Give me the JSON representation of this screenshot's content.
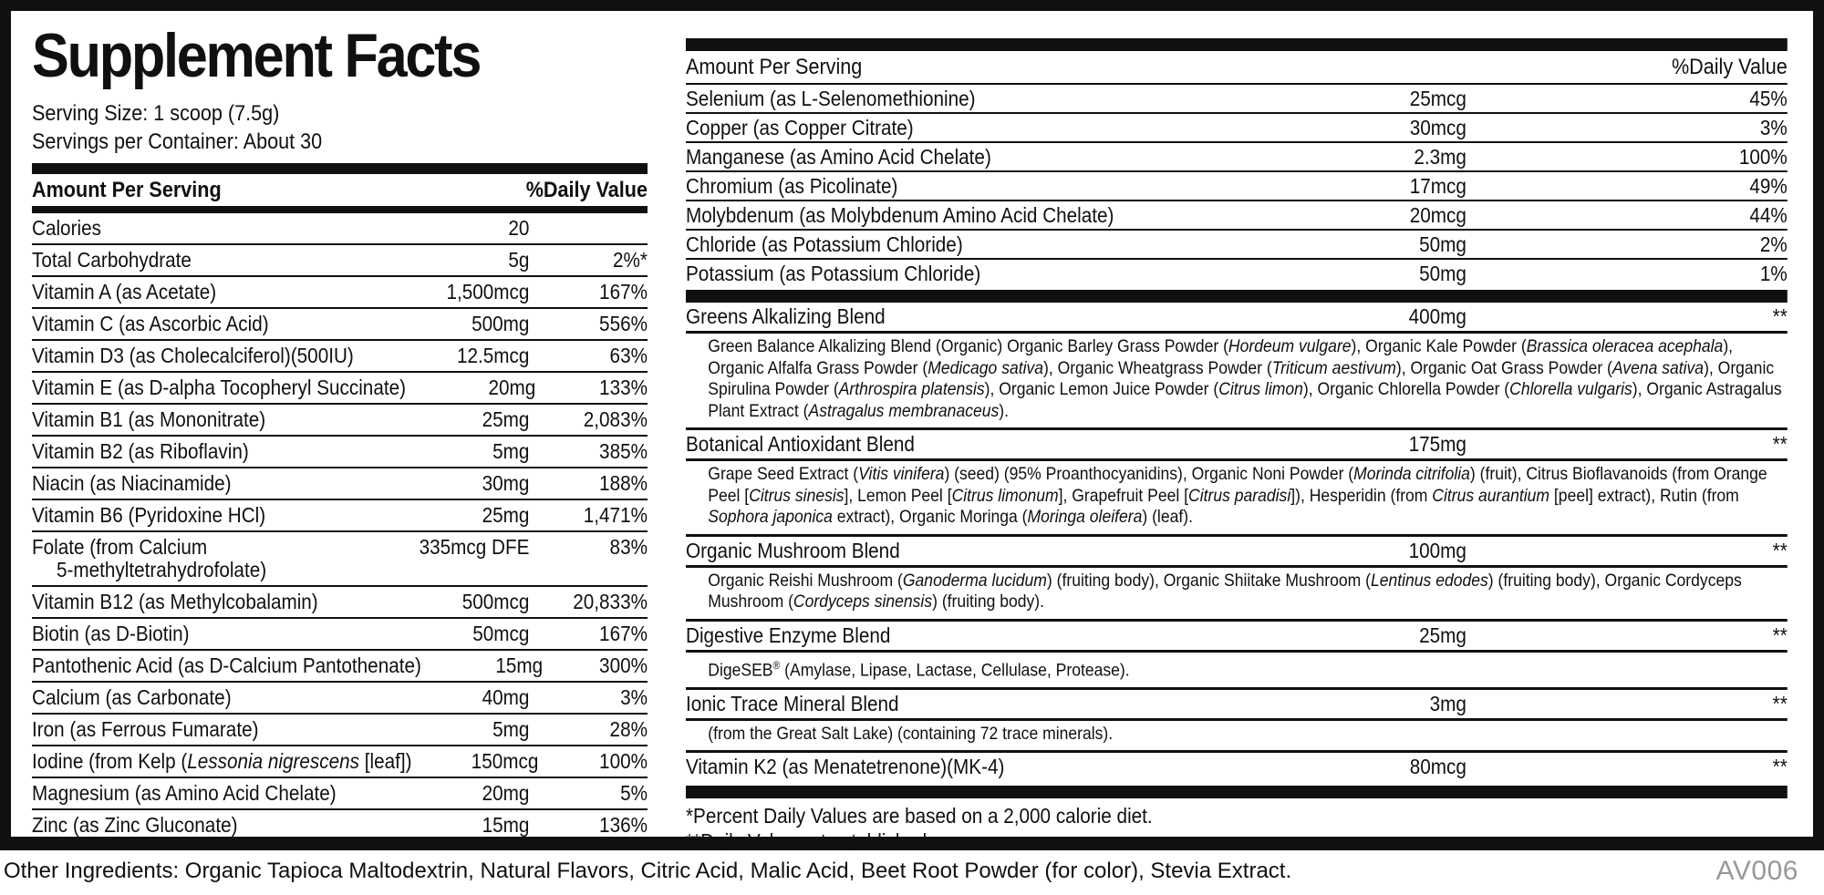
{
  "title": "Supplement Facts",
  "serving": {
    "size": "Serving Size: 1 scoop (7.5g)",
    "per_container": "Servings per Container: About 30"
  },
  "headers": {
    "amount": "Amount Per Serving",
    "dv": "%Daily Value"
  },
  "left_table": {
    "rows": [
      {
        "name": [
          "Calories"
        ],
        "amount": "20",
        "dv": ""
      },
      {
        "name": [
          "Total Carbohydrate"
        ],
        "amount": "5g",
        "dv": "2%*"
      },
      {
        "name": [
          "Vitamin A (as Acetate)"
        ],
        "amount": "1,500mcg",
        "dv": "167%"
      },
      {
        "name": [
          "Vitamin C (as Ascorbic Acid)"
        ],
        "amount": "500mg",
        "dv": "556%"
      },
      {
        "name": [
          "Vitamin D3 (as Cholecalciferol)(500IU)"
        ],
        "amount": "12.5mcg",
        "dv": "63%"
      },
      {
        "name": [
          "Vitamin E (as D-alpha Tocopheryl Succinate)"
        ],
        "amount": "20mg",
        "dv": "133%"
      },
      {
        "name": [
          "Vitamin B1 (as Mononitrate)"
        ],
        "amount": "25mg",
        "dv": "2,083%"
      },
      {
        "name": [
          "Vitamin B2 (as Riboflavin)"
        ],
        "amount": "5mg",
        "dv": "385%"
      },
      {
        "name": [
          "Niacin (as Niacinamide)"
        ],
        "amount": "30mg",
        "dv": "188%"
      },
      {
        "name": [
          "Vitamin B6 (Pyridoxine HCl)"
        ],
        "amount": "25mg",
        "dv": "1,471%"
      },
      {
        "name": [
          "Folate (from Calcium"
        ],
        "name2": "5-methyltetrahydrofolate)",
        "amount": "335mcg DFE",
        "dv": "83%"
      },
      {
        "name": [
          "Vitamin B12 (as Methylcobalamin)"
        ],
        "amount": "500mcg",
        "dv": "20,833%"
      },
      {
        "name": [
          "Biotin (as D-Biotin)"
        ],
        "amount": "50mcg",
        "dv": "167%"
      },
      {
        "name": [
          "Pantothenic Acid (as D-Calcium Pantothenate)"
        ],
        "amount": "15mg",
        "dv": "300%"
      },
      {
        "name": [
          "Calcium (as Carbonate)"
        ],
        "amount": "40mg",
        "dv": "3%"
      },
      {
        "name": [
          "Iron (as Ferrous Fumarate)"
        ],
        "amount": "5mg",
        "dv": "28%"
      },
      {
        "name": [
          "Iodine (from Kelp (",
          {
            "i": "Lessonia nigrescens"
          },
          " [leaf])"
        ],
        "amount": "150mcg",
        "dv": "100%"
      },
      {
        "name": [
          "Magnesium (as Amino Acid Chelate)"
        ],
        "amount": "20mg",
        "dv": "5%"
      },
      {
        "name": [
          "Zinc (as Zinc Gluconate)"
        ],
        "amount": "15mg",
        "dv": "136%"
      }
    ]
  },
  "right_table": {
    "rows": [
      {
        "name": [
          "Selenium (as L-Selenomethionine)"
        ],
        "amount": "25mcg",
        "dv": "45%"
      },
      {
        "name": [
          "Copper (as Copper Citrate)"
        ],
        "amount": "30mcg",
        "dv": "3%"
      },
      {
        "name": [
          "Manganese (as Amino Acid Chelate)"
        ],
        "amount": "2.3mg",
        "dv": "100%"
      },
      {
        "name": [
          "Chromium (as Picolinate)"
        ],
        "amount": "17mcg",
        "dv": "49%"
      },
      {
        "name": [
          "Molybdenum (as Molybdenum Amino Acid Chelate)"
        ],
        "amount": "20mcg",
        "dv": "44%"
      },
      {
        "name": [
          "Chloride (as Potassium Chloride)"
        ],
        "amount": "50mg",
        "dv": "2%"
      },
      {
        "name": [
          "Potassium (as Potassium Chloride)"
        ],
        "amount": "50mg",
        "dv": "1%"
      }
    ],
    "blends": [
      {
        "name": [
          "Greens Alkalizing Blend"
        ],
        "amount": "400mg",
        "dv": "**",
        "desc": [
          "Green Balance Alkalizing Blend (Organic) Organic Barley Grass Powder (",
          {
            "i": "Hordeum vulgare"
          },
          "), Organic Kale Powder (",
          {
            "i": "Brassica oleracea acephala"
          },
          "), Organic Alfalfa Grass Powder (",
          {
            "i": "Medicago sativa"
          },
          "), Organic Wheatgrass Powder (",
          {
            "i": "Triticum aestivum"
          },
          "), Organic Oat Grass Powder (",
          {
            "i": "Avena sativa"
          },
          "), Organic Spirulina Powder (",
          {
            "i": "Arthrospira platensis"
          },
          "), Organic Lemon Juice Powder (",
          {
            "i": "Citrus limon"
          },
          "), Organic Chlorella Powder (",
          {
            "i": "Chlorella vulgaris"
          },
          "), Organic Astragalus Plant Extract (",
          {
            "i": "Astragalus membranaceus"
          },
          ")."
        ]
      },
      {
        "name": [
          "Botanical Antioxidant Blend"
        ],
        "amount": "175mg",
        "dv": "**",
        "desc": [
          "Grape Seed Extract (",
          {
            "i": "Vitis vinifera"
          },
          ") (seed) (95% Proanthocyanidins), Organic Noni Powder (",
          {
            "i": "Morinda citrifolia"
          },
          ") (fruit), Citrus Bioflavanoids (from Orange Peel [",
          {
            "i": "Citrus sinesis"
          },
          "], Lemon Peel [",
          {
            "i": "Citrus limonum"
          },
          "], Grapefruit Peel [",
          {
            "i": "Citrus paradisi"
          },
          "]), Hesperidin (from ",
          {
            "i": "Citrus aurantium"
          },
          " [peel] extract), Rutin (from ",
          {
            "i": "Sophora japonica"
          },
          " extract), Organic Moringa (",
          {
            "i": "Moringa oleifera"
          },
          ") (leaf)."
        ]
      },
      {
        "name": [
          "Organic Mushroom Blend"
        ],
        "amount": "100mg",
        "dv": "**",
        "desc": [
          "Organic Reishi Mushroom (",
          {
            "i": "Ganoderma lucidum"
          },
          ") (fruiting body), Organic Shiitake Mushroom (",
          {
            "i": "Lentinus edodes"
          },
          ") (fruiting body), Organic Cordyceps Mushroom (",
          {
            "i": "Cordyceps sinensis"
          },
          ") (fruiting body)."
        ]
      },
      {
        "name": [
          "Digestive Enzyme Blend"
        ],
        "amount": "25mg",
        "dv": "**",
        "desc": [
          "DigeSEB",
          {
            "sup": "®"
          },
          " (Amylase, Lipase, Lactase, Cellulase, Protease)."
        ]
      },
      {
        "name": [
          "Ionic Trace Mineral Blend"
        ],
        "amount": "3mg",
        "dv": "**",
        "desc": [
          "(from the Great Salt Lake) (containing 72 trace minerals)."
        ]
      },
      {
        "name": [
          "Vitamin K2 (as Menatetrenone)(MK-4)"
        ],
        "amount": "80mcg",
        "dv": "**"
      }
    ],
    "footnotes": [
      "*Percent Daily Values are based on a 2,000 calorie diet.",
      "**Daily Value not established."
    ]
  },
  "footer": {
    "other_ingredients": "Other Ingredients: Organic Tapioca Maltodextrin, Natural Flavors, Citric Acid, Malic Acid, Beet Root Powder (for color), Stevia Extract.",
    "doc_code": "AV006"
  },
  "colors": {
    "ink": "#101010",
    "muted": "#97989b",
    "background": "#ffffff"
  }
}
